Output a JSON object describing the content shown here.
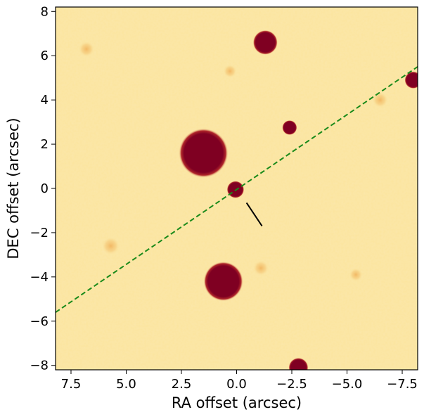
{
  "chart_data": {
    "type": "scatter",
    "title": "",
    "xlabel": "RA offset (arcsec)",
    "ylabel": "DEC offset (arcsec)",
    "xlim": [
      8.2,
      -8.2
    ],
    "ylim": [
      -8.2,
      8.2
    ],
    "xticks": [
      7.5,
      5.0,
      2.5,
      0.0,
      -2.5,
      -5.0,
      -7.5
    ],
    "xtick_labels": [
      "7.5",
      "5.0",
      "2.5",
      "0.0",
      "−2.5",
      "−5.0",
      "−7.5"
    ],
    "yticks": [
      8,
      6,
      4,
      2,
      0,
      -2,
      -4,
      -6,
      -8
    ],
    "ytick_labels": [
      "8",
      "6",
      "4",
      "2",
      "0",
      "−2",
      "−4",
      "−6",
      "−8"
    ],
    "grid": false,
    "colors": {
      "background": "#fbe49d",
      "source_core": "#7f0022",
      "source_halo": "#c0392b",
      "slit_line": "#1a8a1a",
      "marker_line": "#000000"
    },
    "sources": [
      {
        "x": -1.3,
        "y": 6.6,
        "r": 0.5
      },
      {
        "x": 1.5,
        "y": 1.6,
        "r": 1.0
      },
      {
        "x": -2.4,
        "y": 2.75,
        "r": 0.3
      },
      {
        "x": 0.05,
        "y": -0.05,
        "r": 0.35
      },
      {
        "x": 0.6,
        "y": -4.2,
        "r": 0.8
      },
      {
        "x": -2.8,
        "y": -8.1,
        "r": 0.4
      },
      {
        "x": -8.0,
        "y": 4.9,
        "r": 0.35
      }
    ],
    "faint_sources": [
      {
        "x": 6.8,
        "y": 6.3,
        "r": 0.35
      },
      {
        "x": 0.3,
        "y": 5.3,
        "r": 0.3
      },
      {
        "x": 5.7,
        "y": -2.6,
        "r": 0.4
      },
      {
        "x": -1.1,
        "y": -3.6,
        "r": 0.35
      },
      {
        "x": -5.4,
        "y": -3.9,
        "r": 0.3
      },
      {
        "x": -6.5,
        "y": 4.0,
        "r": 0.35
      }
    ],
    "slit_line": {
      "x": [
        8.2,
        -8.2
      ],
      "y": [
        -5.6,
        5.5
      ],
      "style": "dashed"
    },
    "marker_line": {
      "x": [
        -0.45,
        -1.15
      ],
      "y": [
        -0.65,
        -1.7
      ]
    }
  }
}
